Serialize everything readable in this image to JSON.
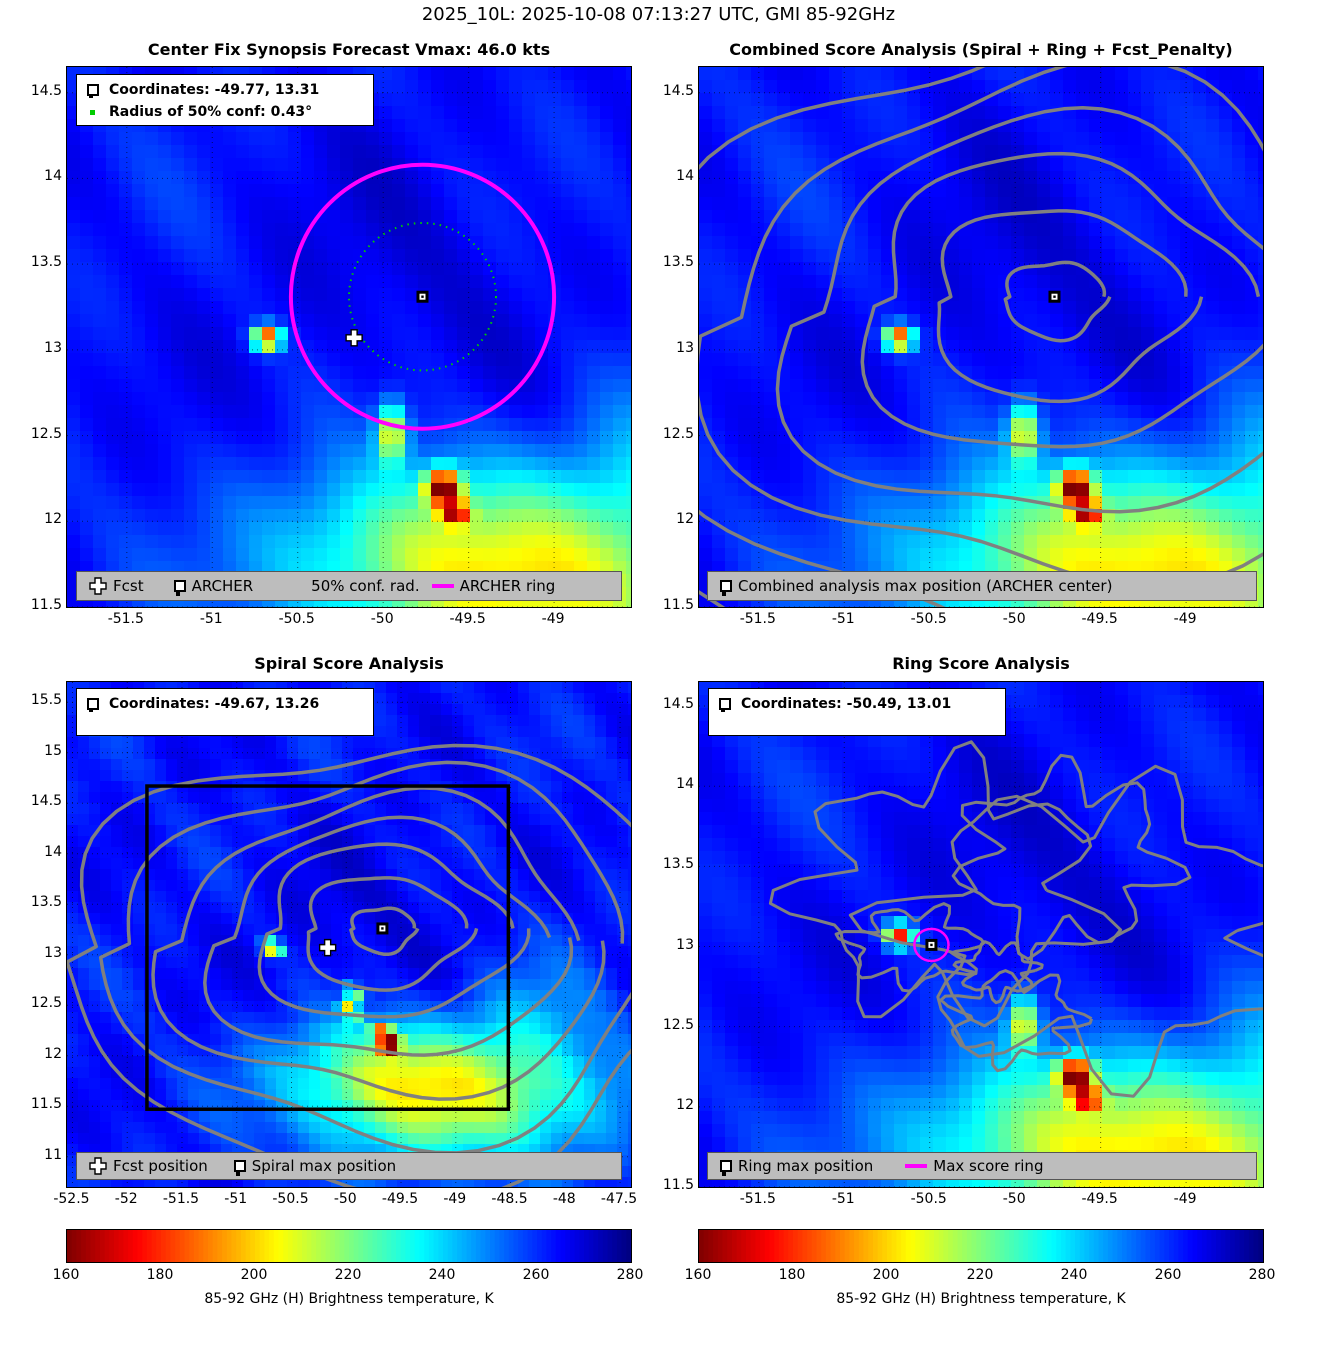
{
  "figure_title": "2025_10L: 2025-10-08 07:13:27 UTC, GMI 85-92GHz",
  "colors": {
    "ring": "#ff00ff",
    "contour": "#808080",
    "conf": "#00cc00",
    "legend_bg": "#bdbdbd"
  },
  "panels": {
    "synopsis": {
      "title": "Center Fix Synopsis     Forecast Vmax: 46.0 kts",
      "info": {
        "coords": "Coordinates: -49.77, 13.31",
        "radius": "Radius of 50% conf: 0.43°"
      },
      "legend": {
        "fcst": "Fcst",
        "archer": "ARCHER",
        "conf": "50% conf. rad.",
        "ring": "ARCHER ring"
      }
    },
    "combined": {
      "title": "Combined Score Analysis (Spiral + Ring + Fcst_Penalty)",
      "legend": {
        "max": "Combined analysis max position (ARCHER center)"
      }
    },
    "spiral": {
      "title": "Spiral Score Analysis",
      "info": {
        "coords": "Coordinates: -49.67, 13.26"
      },
      "legend": {
        "fcst": "Fcst position",
        "max": "Spiral max position"
      }
    },
    "ring": {
      "title": "Ring Score Analysis",
      "info": {
        "coords": "Coordinates: -50.49, 13.01"
      },
      "legend": {
        "max": "Ring max position",
        "ring": "Max score ring"
      }
    }
  },
  "colorbar": {
    "label": "85-92 GHz (H) Brightness temperature, K",
    "ticks": [
      "160",
      "180",
      "200",
      "220",
      "240",
      "260",
      "280"
    ]
  },
  "chart_data": [
    {
      "type": "heatmap",
      "name": "synopsis",
      "xlim": [
        -51.85,
        -48.55
      ],
      "ylim": [
        11.5,
        14.65
      ],
      "xticks": [
        "-51.5",
        "-51",
        "-50.5",
        "-50",
        "-49.5",
        "-49"
      ],
      "yticks": [
        "11.5",
        "12",
        "12.5",
        "13",
        "13.5",
        "14",
        "14.5"
      ],
      "fcst_position": [
        -50.17,
        13.07
      ],
      "archer_center": [
        -49.77,
        13.31
      ],
      "conf_radius_deg": 0.43,
      "archer_ring_radius_deg": 0.77
    },
    {
      "type": "heatmap",
      "name": "combined",
      "xlim": [
        -51.85,
        -48.55
      ],
      "ylim": [
        11.5,
        14.65
      ],
      "xticks": [
        "-51.5",
        "-51",
        "-50.5",
        "-50",
        "-49.5",
        "-49"
      ],
      "yticks": [
        "11.5",
        "12",
        "12.5",
        "13",
        "13.5",
        "14",
        "14.5"
      ],
      "max_position": [
        -49.77,
        13.31
      ]
    },
    {
      "type": "heatmap",
      "name": "spiral",
      "xlim": [
        -52.55,
        -47.4
      ],
      "ylim": [
        10.7,
        15.7
      ],
      "xticks": [
        "-52.5",
        "-52",
        "-51.5",
        "-51",
        "-50.5",
        "-50",
        "-49.5",
        "-49",
        "-48.5",
        "-48",
        "-47.5"
      ],
      "yticks": [
        "11",
        "11.5",
        "12",
        "12.5",
        "13",
        "13.5",
        "14",
        "14.5",
        "15",
        "15.5"
      ],
      "fcst_position": [
        -50.17,
        13.07
      ],
      "max_position": [
        -49.67,
        13.26
      ],
      "search_box": {
        "x": [
          -51.82,
          -48.52
        ],
        "y": [
          11.47,
          14.67
        ]
      }
    },
    {
      "type": "heatmap",
      "name": "ring",
      "xlim": [
        -51.85,
        -48.55
      ],
      "ylim": [
        11.5,
        14.65
      ],
      "xticks": [
        "-51.5",
        "-51",
        "-50.5",
        "-50",
        "-49.5",
        "-49"
      ],
      "yticks": [
        "11.5",
        "12",
        "12.5",
        "13",
        "13.5",
        "14",
        "14.5"
      ],
      "max_position": [
        -50.49,
        13.01
      ],
      "max_ring_radius_deg": 0.1
    }
  ]
}
